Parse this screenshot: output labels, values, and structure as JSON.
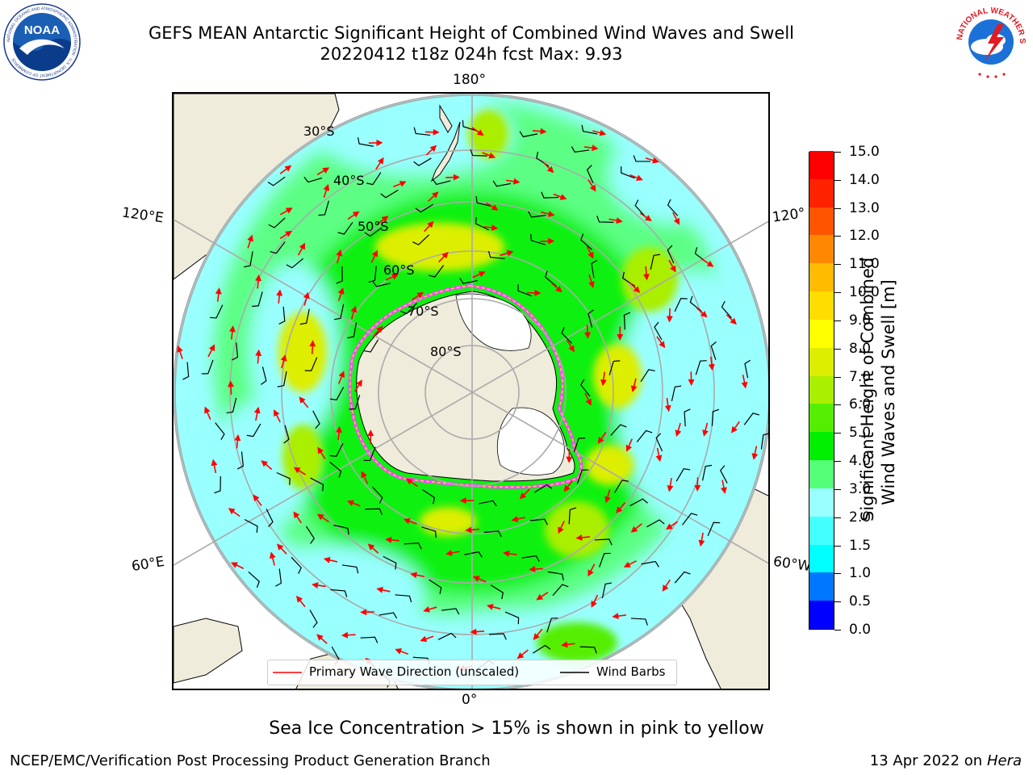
{
  "header": {
    "title_line1": "GEFS MEAN Antarctic Significant Height of Combined Wind Waves and Swell",
    "title_line2": "20220412 t18z 024h fcst   Max: 9.93"
  },
  "logos": {
    "left": {
      "name": "NOAA",
      "text": "NOAA",
      "ring_text": "NATIONAL OCEANIC AND ATMOSPHERIC ADMINISTRATION · U.S. DEPARTMENT OF COMMERCE"
    },
    "right": {
      "name": "National Weather Service",
      "ring_text": "NATIONAL WEATHER SERVICE"
    }
  },
  "map": {
    "projection": "south-polar-stereographic",
    "longitude_labels": {
      "top": "180°",
      "bottom": "0°",
      "left_upper": "120°E",
      "left_lower": "60°E",
      "right_upper": "120°",
      "right_lower": "60°W"
    },
    "latitude_labels": [
      "30°S",
      "40°S",
      "50°S",
      "60°S",
      "70°S",
      "80°S"
    ],
    "max_value": 9.93
  },
  "colorbar": {
    "title_line1": "Significant Height of Combined",
    "title_line2": "Wind Waves and Swell [m]",
    "ticks": [
      "0.0",
      "0.5",
      "1.0",
      "1.5",
      "2.0",
      "3.0",
      "4.0",
      "5.0",
      "6.0",
      "7.0",
      "8.0",
      "9.0",
      "10.0",
      "11.0",
      "12.0",
      "13.0",
      "14.0",
      "15.0"
    ],
    "colors": [
      "#0000ff",
      "#0077ff",
      "#00ffff",
      "#44ffff",
      "#99ffff",
      "#55ff77",
      "#00ee00",
      "#55ee00",
      "#aaee00",
      "#ddee00",
      "#ffff00",
      "#ffdd00",
      "#ffbb00",
      "#ff8800",
      "#ff5500",
      "#ff2200",
      "#ff0000"
    ]
  },
  "legend": {
    "wave_label": "Primary Wave Direction (unscaled)",
    "wave_color": "#ff0000",
    "barb_label": "Wind Barbs",
    "barb_color": "#000000"
  },
  "caption": "Sea Ice Concentration > 15% is shown in pink to yellow",
  "footer": {
    "left": "NCEP/EMC/Verification Post Processing Product Generation Branch",
    "right_prefix": "13 Apr 2022 on ",
    "right_host": "Hera"
  }
}
